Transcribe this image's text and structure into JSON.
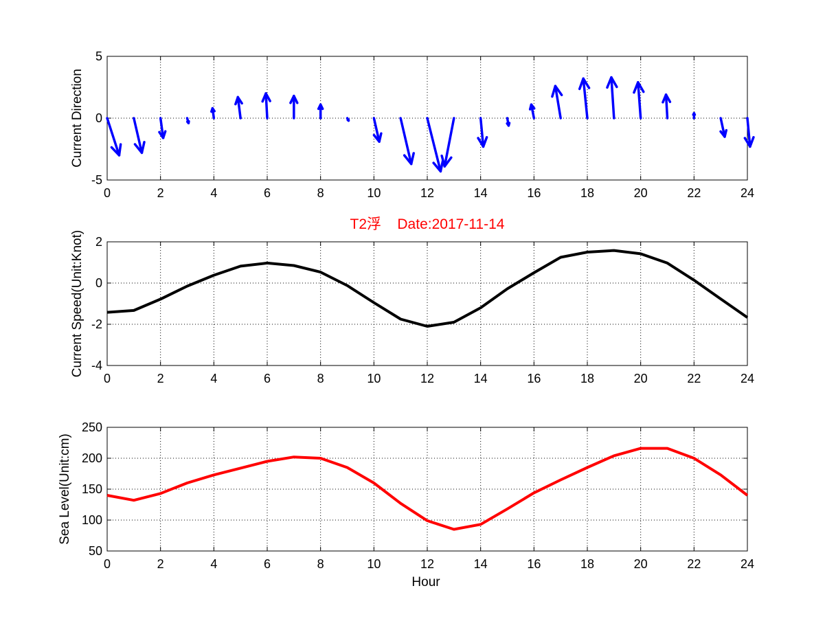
{
  "chart_data": [
    {
      "type": "quiver",
      "title": "",
      "xlabel": "",
      "ylabel": "Current Direction",
      "xlim": [
        0,
        24
      ],
      "ylim": [
        -5,
        5
      ],
      "xticks": [
        "0",
        "2",
        "4",
        "6",
        "8",
        "10",
        "12",
        "14",
        "16",
        "18",
        "20",
        "22",
        "24"
      ],
      "yticks": [
        "5",
        "0",
        "-5"
      ],
      "grid": true,
      "color": "#0000ff",
      "x": [
        0,
        1,
        2,
        3,
        4,
        5,
        6,
        7,
        8,
        9,
        10,
        11,
        12,
        13,
        14,
        15,
        16,
        17,
        18,
        19,
        20,
        21,
        22,
        23,
        24
      ],
      "u": [
        0.45,
        0.3,
        0.1,
        0.05,
        -0.05,
        -0.1,
        -0.05,
        0.0,
        0.0,
        0.05,
        0.2,
        0.4,
        0.5,
        -0.35,
        0.1,
        0.05,
        -0.1,
        -0.2,
        -0.15,
        -0.1,
        -0.1,
        -0.05,
        0.0,
        0.15,
        0.1
      ],
      "v": [
        -3.0,
        -2.8,
        -1.6,
        -0.4,
        0.8,
        1.7,
        2.0,
        1.8,
        1.1,
        -0.2,
        -1.9,
        -3.7,
        -4.3,
        -3.9,
        -2.3,
        -0.6,
        1.1,
        2.6,
        3.2,
        3.3,
        2.9,
        1.9,
        0.4,
        -1.5,
        -2.3
      ]
    },
    {
      "type": "line",
      "title": "T2浮    Date:2017-11-14",
      "xlabel": "",
      "ylabel": "Current Speed(Unit:Knot)",
      "xlim": [
        0,
        24
      ],
      "ylim": [
        -4,
        2
      ],
      "xticks": [
        "0",
        "2",
        "4",
        "6",
        "8",
        "10",
        "12",
        "14",
        "16",
        "18",
        "20",
        "22",
        "24"
      ],
      "yticks": [
        "2",
        "0",
        "-2",
        "-4"
      ],
      "grid": true,
      "color": "#000000",
      "x": [
        0,
        1,
        2,
        3,
        4,
        5,
        6,
        7,
        8,
        9,
        10,
        11,
        12,
        13,
        14,
        15,
        16,
        17,
        18,
        19,
        20,
        21,
        22,
        23,
        24
      ],
      "y": [
        -1.42,
        -1.33,
        -0.78,
        -0.15,
        0.38,
        0.82,
        0.97,
        0.85,
        0.53,
        -0.12,
        -0.95,
        -1.75,
        -2.1,
        -1.9,
        -1.2,
        -0.28,
        0.5,
        1.25,
        1.5,
        1.58,
        1.42,
        0.97,
        0.14,
        -0.77,
        -1.67
      ]
    },
    {
      "type": "line",
      "title": "",
      "xlabel": "Hour",
      "ylabel": "Sea Level(Unit:cm)",
      "xlim": [
        0,
        24
      ],
      "ylim": [
        50,
        250
      ],
      "xticks": [
        "0",
        "2",
        "4",
        "6",
        "8",
        "10",
        "12",
        "14",
        "16",
        "18",
        "20",
        "22",
        "24"
      ],
      "yticks": [
        "250",
        "200",
        "150",
        "100",
        "50"
      ],
      "grid": true,
      "color": "#ff0000",
      "x": [
        0,
        1,
        2,
        3,
        4,
        5,
        6,
        7,
        8,
        9,
        10,
        11,
        12,
        13,
        14,
        15,
        16,
        17,
        18,
        19,
        20,
        21,
        22,
        23,
        24
      ],
      "y": [
        140,
        132,
        143,
        160,
        173,
        184,
        195,
        202,
        200,
        185,
        160,
        127,
        99,
        85,
        93,
        118,
        144,
        165,
        185,
        204,
        216,
        216,
        200,
        173,
        140
      ]
    }
  ]
}
